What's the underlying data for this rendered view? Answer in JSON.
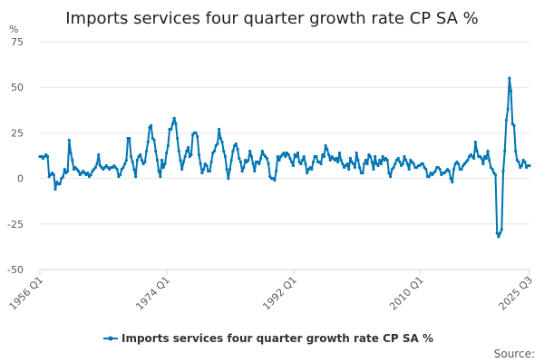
{
  "colors": {
    "series": "#0075b2",
    "grid": "#e6e6e6",
    "axis": "#ccd6eb"
  },
  "chart_data": {
    "type": "line",
    "title": "Imports services four quarter growth rate CP SA %",
    "ylabel": "%",
    "ylim": [
      -50,
      75
    ],
    "yticks": [
      75,
      50,
      25,
      0,
      -25,
      -50
    ],
    "xticks": [
      "1956 Q1",
      "1974 Q1",
      "1992 Q1",
      "2010 Q1",
      "2025 Q3"
    ],
    "grid": true,
    "legend": "bottom-center",
    "source": "Source:",
    "x_start": "1956 Q1",
    "x_end": "2025 Q3",
    "series": [
      {
        "name": "Imports services four quarter growth rate CP SA %",
        "values": [
          12,
          12,
          11,
          12,
          13,
          12,
          1,
          2,
          3,
          2,
          -6,
          -2,
          -3,
          -3,
          0,
          1,
          5,
          3,
          4,
          21,
          14,
          10,
          5,
          6,
          5,
          4,
          2,
          3,
          4,
          3,
          2,
          3,
          1,
          2,
          4,
          5,
          6,
          8,
          13,
          7,
          6,
          5,
          6,
          7,
          6,
          5,
          6,
          6,
          7,
          6,
          5,
          1,
          2,
          5,
          6,
          8,
          10,
          22,
          22,
          12,
          9,
          5,
          1,
          10,
          12,
          13,
          10,
          8,
          9,
          15,
          20,
          28,
          29,
          22,
          21,
          15,
          10,
          4,
          1,
          10,
          6,
          8,
          14,
          18,
          27,
          27,
          30,
          33,
          30,
          22,
          15,
          10,
          5,
          9,
          12,
          15,
          17,
          12,
          13,
          24,
          25,
          25,
          23,
          13,
          8,
          3,
          5,
          8,
          7,
          4,
          4,
          9,
          14,
          15,
          18,
          19,
          27,
          22,
          20,
          15,
          12,
          5,
          0,
          5,
          10,
          15,
          18,
          19,
          16,
          11,
          9,
          4,
          6,
          10,
          9,
          10,
          15,
          12,
          8,
          4,
          9,
          9,
          8,
          11,
          15,
          13,
          12,
          11,
          8,
          1,
          0,
          0,
          -1,
          4,
          12,
          10,
          12,
          13,
          14,
          12,
          14,
          13,
          11,
          9,
          7,
          13,
          12,
          14,
          9,
          8,
          10,
          12,
          8,
          3,
          5,
          6,
          5,
          9,
          12,
          12,
          9,
          9,
          8,
          13,
          12,
          18,
          16,
          13,
          10,
          12,
          11,
          10,
          11,
          9,
          14,
          10,
          8,
          6,
          7,
          8,
          5,
          11,
          9,
          8,
          6,
          14,
          10,
          6,
          3,
          3,
          8,
          10,
          8,
          13,
          12,
          9,
          5,
          12,
          8,
          7,
          10,
          8,
          12,
          10,
          11,
          10,
          3,
          1,
          5,
          6,
          8,
          10,
          11,
          9,
          7,
          8,
          12,
          10,
          8,
          5,
          10,
          9,
          8,
          6,
          6,
          7,
          7,
          8,
          8,
          6,
          5,
          1,
          1,
          3,
          2,
          3,
          4,
          6,
          6,
          5,
          2,
          3,
          3,
          4,
          5,
          4,
          0,
          -2,
          5,
          8,
          9,
          8,
          5,
          5,
          7,
          8,
          9,
          10,
          12,
          13,
          12,
          11,
          20,
          15,
          12,
          12,
          11,
          8,
          12,
          11,
          15,
          10,
          6,
          5,
          3,
          2,
          -30,
          -32,
          -30,
          -28,
          4,
          15,
          32,
          38,
          55,
          48,
          30,
          29,
          15,
          10,
          9,
          6,
          7,
          10,
          9,
          6,
          7,
          7
        ]
      }
    ]
  }
}
